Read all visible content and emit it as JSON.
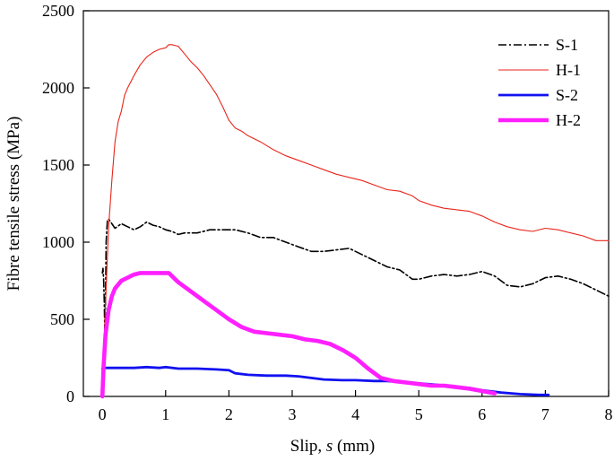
{
  "chart_data": {
    "type": "line",
    "title": "",
    "xlabel": "Slip, ",
    "xlabel_var": "s",
    "xlabel_unit": " (mm)",
    "ylabel": "Fibre tensile stress (MPa)",
    "xlim": [
      -0.3,
      8
    ],
    "ylim": [
      0,
      2500
    ],
    "xticks": [
      0,
      1,
      2,
      3,
      4,
      5,
      6,
      7,
      8
    ],
    "yticks": [
      0,
      500,
      1000,
      1500,
      2000,
      2500
    ],
    "grid": false,
    "legend_position": "top-right",
    "series": [
      {
        "name": "S-1",
        "color": "#000000",
        "style": "dashdot",
        "x": [
          0.0,
          0.01,
          0.02,
          0.03,
          0.04,
          0.05,
          0.06,
          0.08,
          0.1,
          0.2,
          0.3,
          0.4,
          0.5,
          0.6,
          0.7,
          0.8,
          0.9,
          1.0,
          1.1,
          1.2,
          1.3,
          1.5,
          1.7,
          1.9,
          2.1,
          2.3,
          2.5,
          2.7,
          2.9,
          3.1,
          3.3,
          3.5,
          3.7,
          3.9,
          4.1,
          4.3,
          4.5,
          4.7,
          4.9,
          5.0,
          5.2,
          5.4,
          5.6,
          5.8,
          6.0,
          6.2,
          6.4,
          6.6,
          6.8,
          7.0,
          7.2,
          7.4,
          7.6,
          7.8,
          8.0
        ],
        "values": [
          800,
          830,
          760,
          620,
          380,
          600,
          1000,
          1140,
          1150,
          1090,
          1120,
          1100,
          1080,
          1100,
          1130,
          1110,
          1100,
          1080,
          1070,
          1050,
          1060,
          1060,
          1080,
          1080,
          1080,
          1060,
          1030,
          1030,
          1000,
          970,
          940,
          940,
          950,
          960,
          920,
          880,
          840,
          820,
          760,
          760,
          780,
          790,
          780,
          790,
          810,
          780,
          720,
          710,
          730,
          770,
          780,
          760,
          730,
          690,
          650
        ]
      },
      {
        "name": "H-1",
        "color": "#e8251a",
        "style": "solid",
        "x": [
          0.0,
          0.05,
          0.1,
          0.15,
          0.2,
          0.25,
          0.3,
          0.35,
          0.4,
          0.5,
          0.6,
          0.7,
          0.8,
          0.9,
          1.0,
          1.05,
          1.1,
          1.2,
          1.3,
          1.4,
          1.5,
          1.6,
          1.7,
          1.8,
          1.9,
          2.0,
          2.1,
          2.2,
          2.3,
          2.5,
          2.7,
          2.9,
          3.1,
          3.3,
          3.5,
          3.7,
          3.9,
          4.1,
          4.3,
          4.5,
          4.7,
          4.9,
          5.0,
          5.2,
          5.4,
          5.6,
          5.8,
          6.0,
          6.2,
          6.4,
          6.6,
          6.8,
          7.0,
          7.2,
          7.4,
          7.6,
          7.8,
          8.0
        ],
        "values": [
          0,
          600,
          1100,
          1400,
          1650,
          1780,
          1850,
          1950,
          2000,
          2080,
          2150,
          2200,
          2230,
          2250,
          2260,
          2280,
          2280,
          2270,
          2220,
          2170,
          2130,
          2080,
          2020,
          1960,
          1880,
          1790,
          1740,
          1720,
          1690,
          1650,
          1600,
          1560,
          1530,
          1500,
          1470,
          1440,
          1420,
          1400,
          1370,
          1340,
          1330,
          1300,
          1270,
          1240,
          1220,
          1210,
          1200,
          1170,
          1130,
          1100,
          1080,
          1070,
          1090,
          1080,
          1060,
          1040,
          1010,
          1010
        ]
      },
      {
        "name": "S-2",
        "color": "#1212f0",
        "style": "solid",
        "x": [
          0.0,
          0.05,
          0.1,
          0.3,
          0.5,
          0.7,
          0.9,
          1.0,
          1.2,
          1.5,
          1.8,
          2.0,
          2.1,
          2.3,
          2.6,
          2.9,
          3.1,
          3.3,
          3.5,
          3.8,
          4.0,
          4.3,
          4.5,
          4.8,
          5.0,
          5.3,
          5.5,
          5.8,
          6.0,
          6.3,
          6.6,
          6.9,
          7.05
        ],
        "values": [
          180,
          185,
          185,
          185,
          185,
          190,
          185,
          190,
          180,
          180,
          175,
          170,
          150,
          140,
          135,
          135,
          130,
          120,
          110,
          105,
          105,
          100,
          100,
          90,
          85,
          75,
          65,
          55,
          40,
          25,
          15,
          10,
          10
        ]
      },
      {
        "name": "H-2",
        "color": "#ff1fff",
        "style": "solid",
        "x": [
          0.0,
          0.02,
          0.05,
          0.1,
          0.15,
          0.2,
          0.3,
          0.4,
          0.5,
          0.6,
          0.7,
          0.8,
          0.9,
          1.0,
          1.05,
          1.1,
          1.2,
          1.4,
          1.6,
          1.8,
          2.0,
          2.2,
          2.4,
          2.6,
          2.8,
          3.0,
          3.2,
          3.4,
          3.6,
          3.8,
          4.0,
          4.2,
          4.4,
          4.6,
          4.8,
          5.0,
          5.2,
          5.4,
          5.6,
          5.8,
          6.0,
          6.2
        ],
        "values": [
          0,
          200,
          400,
          560,
          650,
          700,
          750,
          770,
          790,
          800,
          800,
          800,
          800,
          800,
          800,
          780,
          740,
          680,
          620,
          560,
          500,
          450,
          420,
          410,
          400,
          390,
          370,
          360,
          340,
          300,
          250,
          180,
          120,
          100,
          90,
          80,
          70,
          70,
          60,
          50,
          35,
          20
        ]
      }
    ]
  }
}
